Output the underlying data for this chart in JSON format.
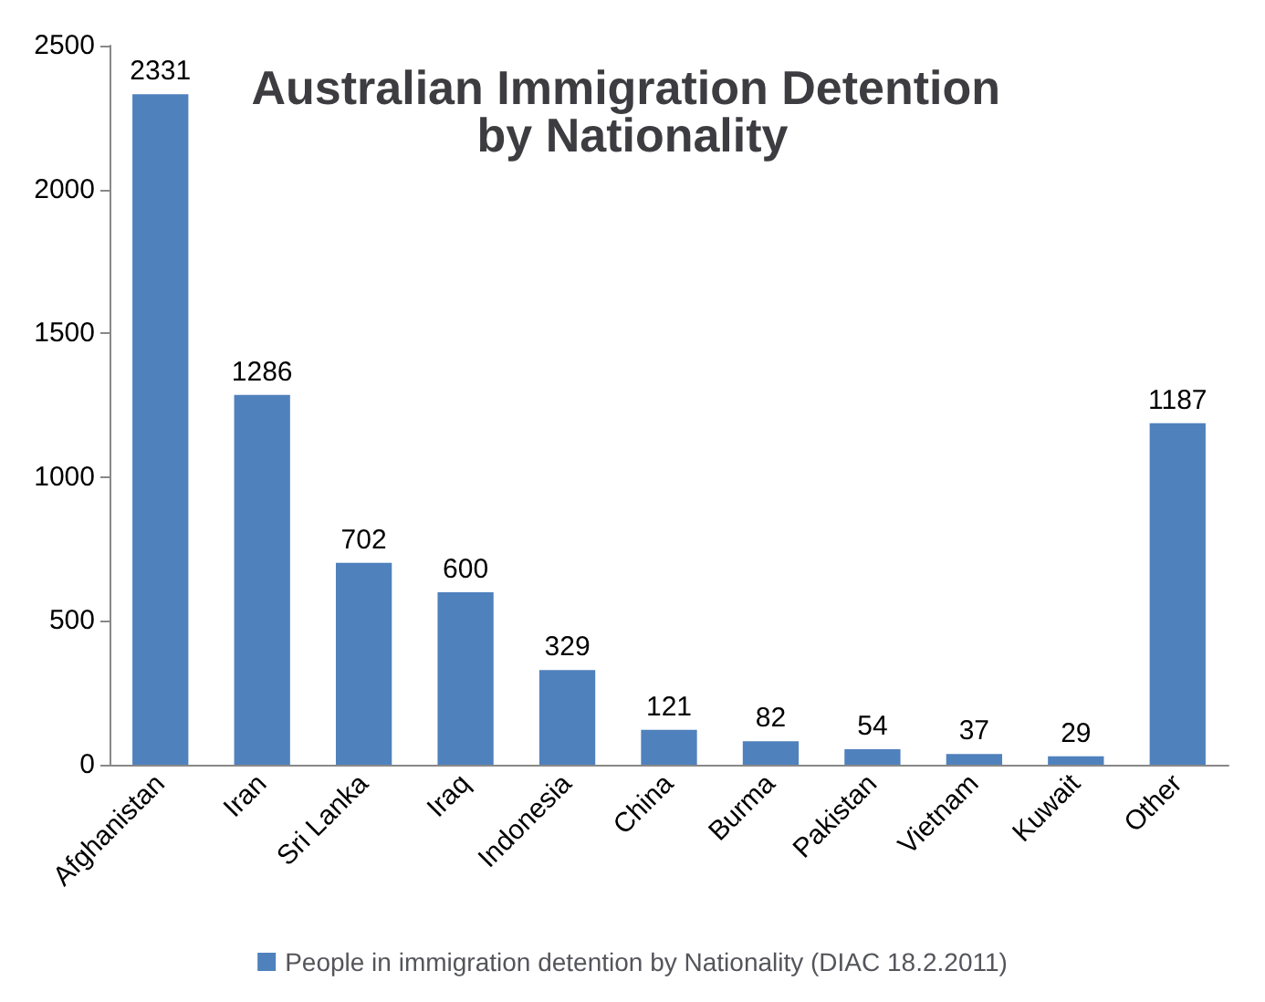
{
  "chart_data": {
    "type": "bar",
    "title": "Australian Immigration Detention by Nationality",
    "categories": [
      "Afghanistan",
      "Iran",
      "Sri Lanka",
      "Iraq",
      "Indonesia",
      "China",
      "Burma",
      "Pakistan",
      "Vietnam",
      "Kuwait",
      "Other"
    ],
    "series": [
      {
        "name": "People in immigration detention by Nationality (DIAC 18.2.2011)",
        "color": "#4f81bd",
        "values": [
          2331,
          1286,
          702,
          600,
          329,
          121,
          82,
          54,
          37,
          29,
          1187
        ]
      }
    ],
    "ylim": [
      0,
      2500
    ],
    "yticks": [
      0,
      500,
      1000,
      1500,
      2000,
      2500
    ],
    "grid": false,
    "legend": "bottom",
    "data_labels": true
  }
}
